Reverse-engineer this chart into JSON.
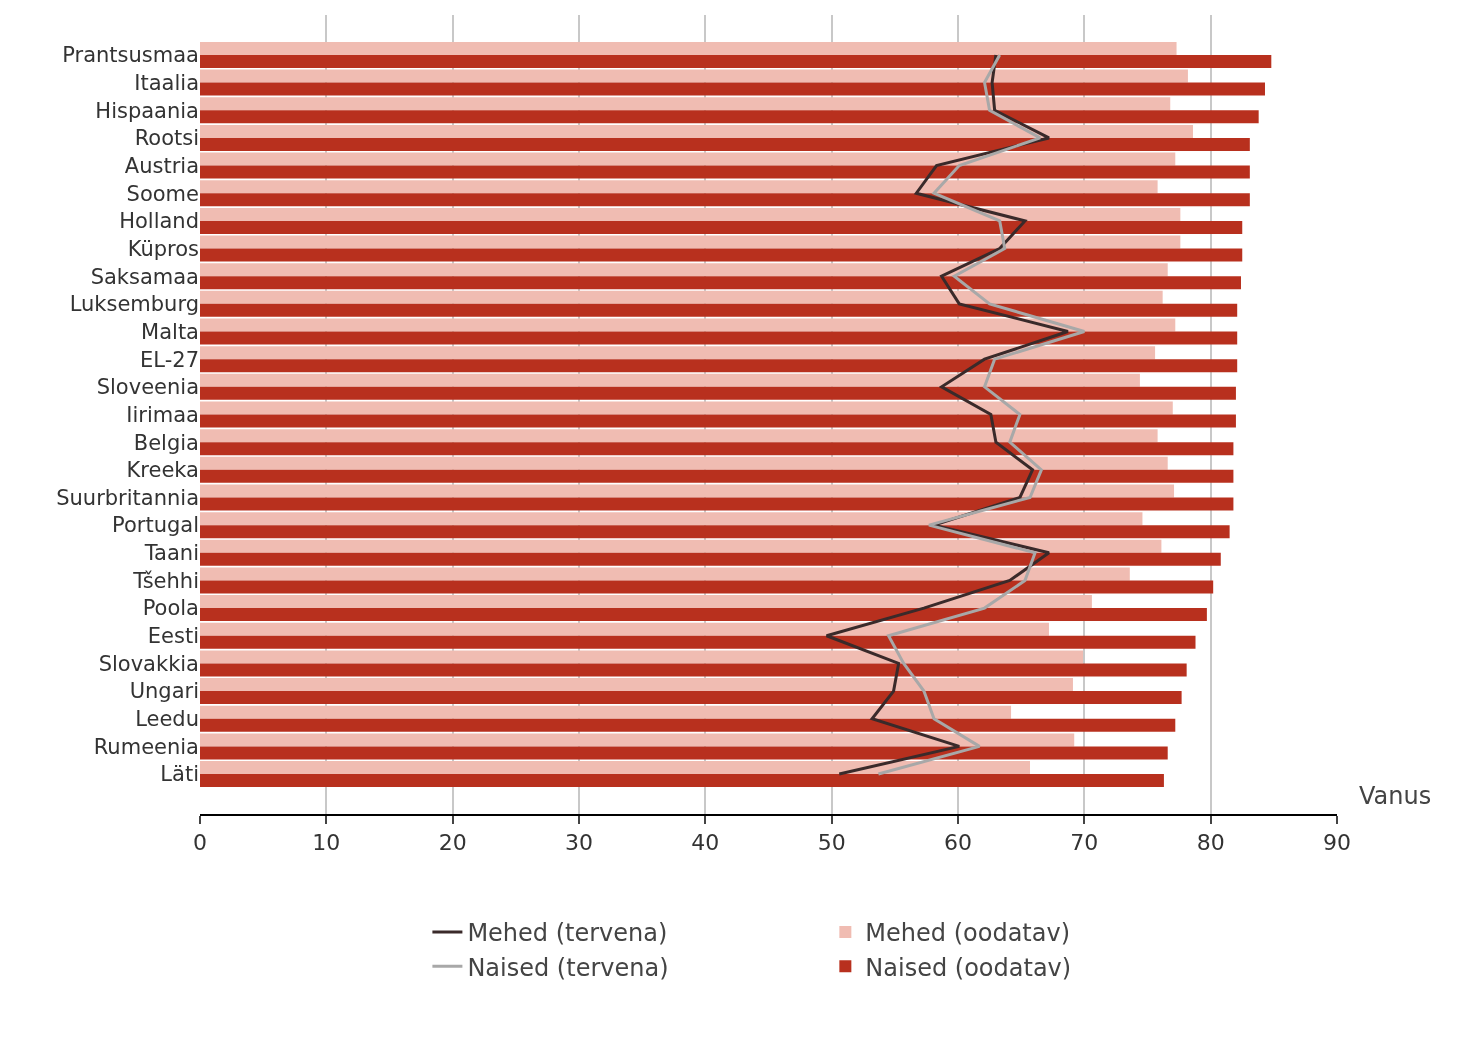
{
  "chart_data": {
    "type": "bar",
    "orientation": "horizontal",
    "xlabel": "Vanus",
    "categories": [
      "Prantsusmaa",
      "Itaalia",
      "Hispaania",
      "Rootsi",
      "Austria",
      "Soome",
      "Holland",
      "Küpros",
      "Saksamaa",
      "Luksemburg",
      "Malta",
      "EL-27",
      "Sloveenia",
      "Iirimaa",
      "Belgia",
      "Kreeka",
      "Suurbritannia",
      "Portugal",
      "Taani",
      "Tšehhi",
      "Poola",
      "Eesti",
      "Slovakkia",
      "Ungari",
      "Leedu",
      "Rumeenia",
      "Läti"
    ],
    "series": [
      {
        "name": "Mehed (tervena)",
        "type": "line",
        "color": "#3a2a2a",
        "values": [
          63.0,
          62.7,
          62.9,
          67.2,
          58.3,
          56.7,
          65.3,
          63.3,
          58.7,
          60.1,
          68.7,
          62.1,
          58.7,
          62.6,
          63.0,
          65.9,
          64.9,
          58.1,
          67.2,
          64.1,
          57.3,
          49.6,
          55.3,
          54.9,
          53.2,
          60.1,
          50.6
        ]
      },
      {
        "name": "Mehed (oodatav)",
        "color": "#f0bcb2",
        "values": [
          77.3,
          78.2,
          76.8,
          78.6,
          77.2,
          75.8,
          77.6,
          77.6,
          76.6,
          76.2,
          77.2,
          75.6,
          74.4,
          77.0,
          75.8,
          76.6,
          77.1,
          74.6,
          76.1,
          73.6,
          70.6,
          67.2,
          69.9,
          69.1,
          64.2,
          69.2,
          65.7
        ]
      },
      {
        "name": "Naised (tervena)",
        "type": "line",
        "color": "#a8a8a8",
        "values": [
          63.3,
          62.1,
          62.5,
          66.5,
          60.1,
          58.1,
          63.3,
          63.7,
          59.7,
          62.5,
          70.0,
          62.9,
          62.1,
          64.9,
          64.1,
          66.6,
          65.7,
          57.7,
          66.1,
          65.3,
          62.1,
          54.5,
          55.7,
          57.3,
          58.1,
          61.7,
          53.7
        ]
      },
      {
        "name": "Naised (oodatav)",
        "color": "#b8301e",
        "values": [
          84.8,
          84.3,
          83.8,
          83.1,
          83.1,
          83.1,
          82.5,
          82.5,
          82.4,
          82.1,
          82.1,
          82.1,
          82.0,
          82.0,
          81.8,
          81.8,
          81.8,
          81.5,
          80.8,
          80.2,
          79.7,
          78.8,
          78.1,
          77.7,
          77.2,
          76.6,
          76.3
        ]
      }
    ],
    "xlim": [
      0,
      90
    ],
    "xticks": [
      0,
      10,
      20,
      30,
      40,
      50,
      60,
      70,
      80,
      90
    ],
    "grid": "x",
    "legend": "bottom"
  }
}
